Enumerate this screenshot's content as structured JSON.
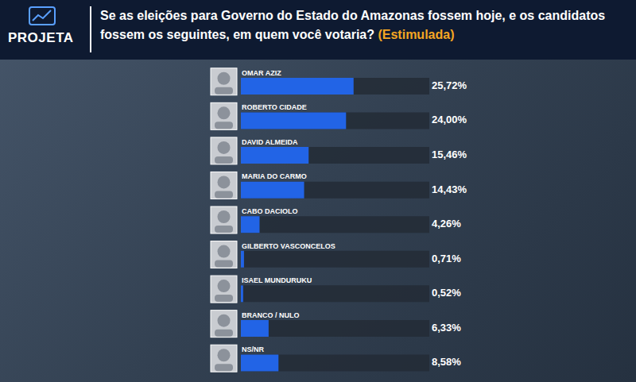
{
  "chart_data": {
    "type": "bar",
    "orientation": "horizontal",
    "source": "PROJETA",
    "title": "Se as eleições para Governo do Estado do Amazonas fossem hoje, e os candidatos fossem os seguintes, em quem você votaria?",
    "subtitle": "(Estimulada)",
    "categories": [
      "OMAR AZIZ",
      "ROBERTO CIDADE",
      "DAVID ALMEIDA",
      "MARIA DO CARMO",
      "CABO DACIOLO",
      "GILBERTO VASCONCELOS",
      "ISAEL MUNDURUKU",
      "BRANCO / NULO",
      "NS/NR"
    ],
    "values": [
      25.72,
      24.0,
      15.46,
      14.43,
      4.26,
      0.71,
      0.52,
      6.33,
      8.58
    ],
    "value_labels": [
      "25,72%",
      "24,00%",
      "15,46%",
      "14,43%",
      "4,26%",
      "0,71%",
      "0,52%",
      "6,33%",
      "8,58%"
    ],
    "color": "#2264e6",
    "xlim": [
      0,
      43
    ],
    "grid": false,
    "data_labels": true,
    "tick_labels": "y"
  }
}
